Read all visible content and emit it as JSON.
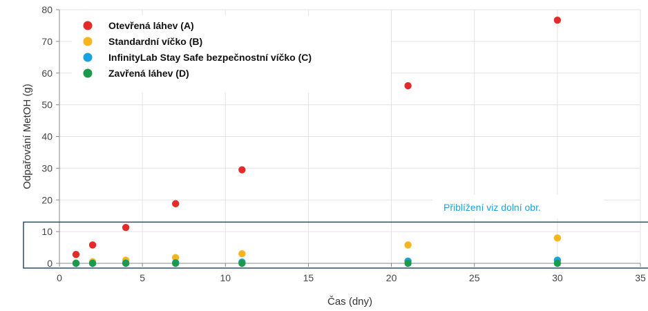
{
  "chart_data": {
    "type": "scatter",
    "xlabel": "Čas (dny)",
    "ylabel": "Odpařování MetOH (g)",
    "xlim": [
      0,
      35
    ],
    "ylim": [
      0,
      80
    ],
    "x_ticks": [
      0,
      5,
      10,
      15,
      20,
      25,
      30,
      35
    ],
    "y_ticks": [
      0,
      10,
      20,
      30,
      40,
      50,
      60,
      70,
      80
    ],
    "grid": true,
    "legend_position": "top-left",
    "series": [
      {
        "name": "Otevřená láhev (A)",
        "color": "#e52a2a",
        "x": [
          1,
          2,
          4,
          7,
          11,
          21,
          30
        ],
        "y": [
          2.8,
          5.8,
          11.3,
          18.8,
          29.5,
          56.0,
          76.7
        ]
      },
      {
        "name": "Standardní víčko (B)",
        "color": "#f5b51e",
        "x": [
          1,
          2,
          4,
          7,
          11,
          21,
          30
        ],
        "y": [
          0.1,
          0.5,
          1.0,
          1.8,
          3.0,
          5.8,
          8.0
        ]
      },
      {
        "name": "InfinityLab Stay Safe bezpečnostní víčko (C)",
        "color": "#1aa2dc",
        "x": [
          1,
          2,
          4,
          7,
          11,
          21,
          30
        ],
        "y": [
          0.0,
          0.0,
          0.1,
          0.2,
          0.4,
          0.7,
          1.0
        ]
      },
      {
        "name": "Zavřená láhev (D)",
        "color": "#1a9a4a",
        "x": [
          1,
          2,
          4,
          7,
          11,
          21,
          30
        ],
        "y": [
          0.0,
          0.0,
          0.0,
          0.0,
          0.0,
          0.0,
          0.0
        ]
      }
    ],
    "annotation": {
      "text": "Přiblížení viz dolní obr.",
      "color": "#1aa2dc",
      "box_color": "#2d4a6b",
      "box_ylim": [
        -1.5,
        13
      ]
    }
  }
}
